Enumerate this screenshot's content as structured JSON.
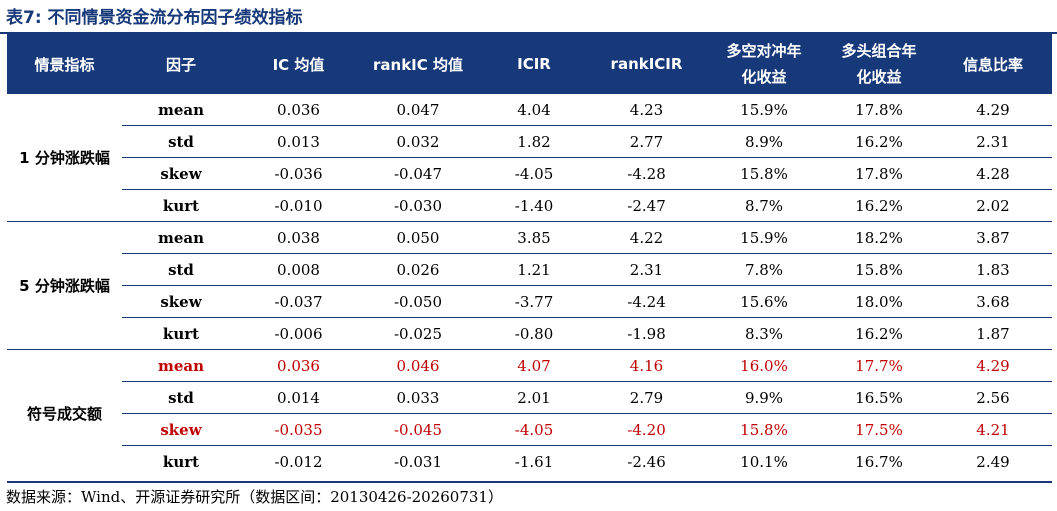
{
  "title": "表7:  不同情景资金流分布因子绩效指标",
  "header": {
    "scenario": "情景指标",
    "factor": "因子",
    "ic": "IC 均值",
    "rankic": "rankIC 均值",
    "icir": "ICIR",
    "rankicir": "rankICIR",
    "ls_line1": "多空对冲年",
    "ls_line2": "化收益",
    "lo_line1": "多头组合年",
    "lo_line2": "化收益",
    "ir": "信息比率"
  },
  "groups": [
    {
      "scenario": "1 分钟涨跌幅",
      "rows": [
        {
          "factor": "mean",
          "ic": "0.036",
          "rankic": "0.047",
          "icir": "4.04",
          "rankicir": "4.23",
          "ls": "15.9%",
          "lo": "17.8%",
          "ir": "4.29"
        },
        {
          "factor": "std",
          "ic": "0.013",
          "rankic": "0.032",
          "icir": "1.82",
          "rankicir": "2.77",
          "ls": "8.9%",
          "lo": "16.2%",
          "ir": "2.31"
        },
        {
          "factor": "skew",
          "ic": "-0.036",
          "rankic": "-0.047",
          "icir": "-4.05",
          "rankicir": "-4.28",
          "ls": "15.8%",
          "lo": "17.8%",
          "ir": "4.28"
        },
        {
          "factor": "kurt",
          "ic": "-0.010",
          "rankic": "-0.030",
          "icir": "-1.40",
          "rankicir": "-2.47",
          "ls": "8.7%",
          "lo": "16.2%",
          "ir": "2.02"
        }
      ]
    },
    {
      "scenario": "5 分钟涨跌幅",
      "rows": [
        {
          "factor": "mean",
          "ic": "0.038",
          "rankic": "0.050",
          "icir": "3.85",
          "rankicir": "4.22",
          "ls": "15.9%",
          "lo": "18.2%",
          "ir": "3.87"
        },
        {
          "factor": "std",
          "ic": "0.008",
          "rankic": "0.026",
          "icir": "1.21",
          "rankicir": "2.31",
          "ls": "7.8%",
          "lo": "15.8%",
          "ir": "1.83"
        },
        {
          "factor": "skew",
          "ic": "-0.037",
          "rankic": "-0.050",
          "icir": "-3.77",
          "rankicir": "-4.24",
          "ls": "15.6%",
          "lo": "18.0%",
          "ir": "3.68"
        },
        {
          "factor": "kurt",
          "ic": "-0.006",
          "rankic": "-0.025",
          "icir": "-0.80",
          "rankicir": "-1.98",
          "ls": "8.3%",
          "lo": "16.2%",
          "ir": "1.87"
        }
      ]
    },
    {
      "scenario": "符号成交额",
      "rows": [
        {
          "factor": "mean",
          "ic": "0.036",
          "rankic": "0.046",
          "icir": "4.07",
          "rankicir": "4.16",
          "ls": "16.0%",
          "lo": "17.7%",
          "ir": "4.29"
        },
        {
          "factor": "std",
          "ic": "0.014",
          "rankic": "0.033",
          "icir": "2.01",
          "rankicir": "2.79",
          "ls": "9.9%",
          "lo": "16.5%",
          "ir": "2.56"
        },
        {
          "factor": "skew",
          "ic": "-0.035",
          "rankic": "-0.045",
          "icir": "-4.05",
          "rankicir": "-4.20",
          "ls": "15.8%",
          "lo": "17.5%",
          "ir": "4.21"
        },
        {
          "factor": "kurt",
          "ic": "-0.012",
          "rankic": "-0.031",
          "icir": "-1.61",
          "rankicir": "-2.46",
          "ls": "10.1%",
          "lo": "16.7%",
          "ir": "2.49"
        }
      ]
    }
  ],
  "highlight_color": "#c00000",
  "header_color": "#17397a",
  "source": "数据来源：Wind、开源证券研究所（数据区间：20130426-20260731）"
}
